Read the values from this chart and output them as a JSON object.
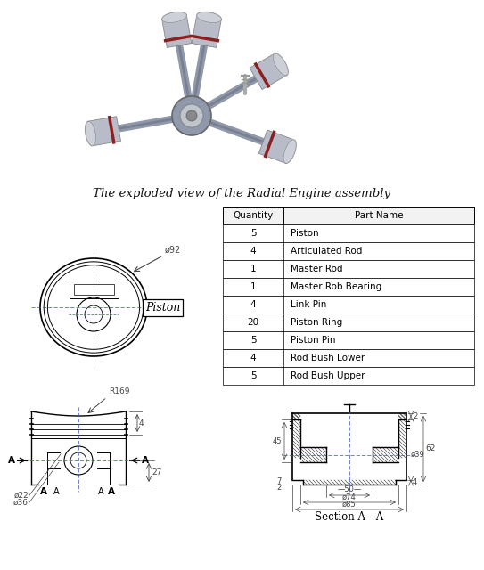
{
  "title": "The exploded view of the Radial Engine assembly",
  "table_headers": [
    "Quantity",
    "Part Name"
  ],
  "table_data": [
    [
      "5",
      "Piston"
    ],
    [
      "4",
      "Articulated Rod"
    ],
    [
      "1",
      "Master Rod"
    ],
    [
      "1",
      "Master Rob Bearing"
    ],
    [
      "4",
      "Link Pin"
    ],
    [
      "20",
      "Piston Ring"
    ],
    [
      "5",
      "Piston Pin"
    ],
    [
      "4",
      "Rod Bush Lower"
    ],
    [
      "5",
      "Rod Bush Upper"
    ]
  ],
  "bg_color": "#ffffff",
  "line_color": "#000000",
  "dim_color": "#444444"
}
